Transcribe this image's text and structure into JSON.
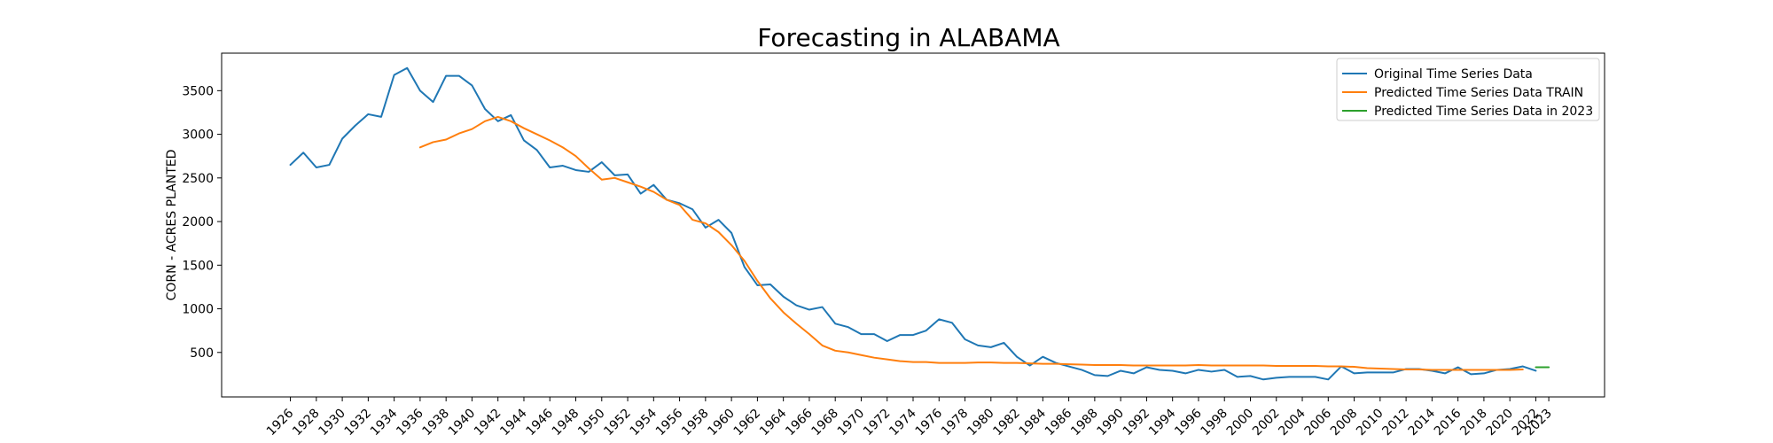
{
  "chart_data": {
    "type": "line",
    "title": "Forecasting in ALABAMA",
    "xlabel": "",
    "ylabel": "CORN - ACRES PLANTED",
    "xlim": [
      1920.7,
      2027.3
    ],
    "ylim": [
      -10,
      3930
    ],
    "x_ticks": [
      1926,
      1928,
      1930,
      1932,
      1934,
      1936,
      1938,
      1940,
      1942,
      1944,
      1946,
      1948,
      1950,
      1952,
      1954,
      1956,
      1958,
      1960,
      1962,
      1964,
      1966,
      1968,
      1970,
      1972,
      1974,
      1976,
      1978,
      1980,
      1982,
      1984,
      1986,
      1988,
      1990,
      1992,
      1994,
      1996,
      1998,
      2000,
      2002,
      2004,
      2006,
      2008,
      2010,
      2012,
      2014,
      2016,
      2018,
      2020,
      2022,
      2023
    ],
    "y_ticks": [
      500,
      1000,
      1500,
      2000,
      2500,
      3000,
      3500
    ],
    "legend_position": "top-right",
    "grid": false,
    "series": [
      {
        "name": "Original Time Series Data",
        "color": "#1f77b4",
        "x": [
          1926,
          1927,
          1928,
          1929,
          1930,
          1931,
          1932,
          1933,
          1934,
          1935,
          1936,
          1937,
          1938,
          1939,
          1940,
          1941,
          1942,
          1943,
          1944,
          1945,
          1946,
          1947,
          1948,
          1949,
          1950,
          1951,
          1952,
          1953,
          1954,
          1955,
          1956,
          1957,
          1958,
          1959,
          1960,
          1961,
          1962,
          1963,
          1964,
          1965,
          1966,
          1967,
          1968,
          1969,
          1970,
          1971,
          1972,
          1973,
          1974,
          1975,
          1976,
          1977,
          1978,
          1979,
          1980,
          1981,
          1982,
          1983,
          1984,
          1985,
          1986,
          1987,
          1988,
          1989,
          1990,
          1991,
          1992,
          1993,
          1994,
          1995,
          1996,
          1997,
          1998,
          1999,
          2000,
          2001,
          2002,
          2003,
          2004,
          2005,
          2006,
          2007,
          2008,
          2009,
          2010,
          2011,
          2012,
          2013,
          2014,
          2015,
          2016,
          2017,
          2018,
          2019,
          2020,
          2021,
          2022
        ],
        "y": [
          2650,
          2790,
          2620,
          2650,
          2950,
          3100,
          3230,
          3200,
          3680,
          3760,
          3500,
          3370,
          3670,
          3670,
          3560,
          3290,
          3150,
          3220,
          2930,
          2820,
          2620,
          2640,
          2590,
          2570,
          2680,
          2530,
          2540,
          2320,
          2420,
          2250,
          2210,
          2140,
          1930,
          2020,
          1870,
          1480,
          1270,
          1280,
          1140,
          1040,
          990,
          1020,
          830,
          790,
          710,
          710,
          630,
          700,
          700,
          750,
          880,
          840,
          650,
          580,
          560,
          610,
          450,
          350,
          450,
          380,
          340,
          300,
          240,
          230,
          290,
          260,
          330,
          300,
          290,
          260,
          300,
          280,
          300,
          220,
          230,
          190,
          210,
          220,
          220,
          220,
          190,
          340,
          260,
          270,
          270,
          270,
          310,
          310,
          290,
          260,
          330,
          250,
          260,
          300,
          310,
          340,
          290
        ]
      },
      {
        "name": "Predicted Time Series Data TRAIN",
        "color": "#ff7f0e",
        "x": [
          1936,
          1937,
          1938,
          1939,
          1940,
          1941,
          1942,
          1943,
          1944,
          1945,
          1946,
          1947,
          1948,
          1949,
          1950,
          1951,
          1952,
          1953,
          1954,
          1955,
          1956,
          1957,
          1958,
          1959,
          1960,
          1961,
          1962,
          1963,
          1964,
          1965,
          1966,
          1967,
          1968,
          1969,
          1970,
          1971,
          1972,
          1973,
          1974,
          1975,
          1976,
          1977,
          1978,
          1979,
          1980,
          1981,
          1982,
          1983,
          1984,
          1985,
          1986,
          1987,
          1988,
          1989,
          1990,
          1991,
          1992,
          1993,
          1994,
          1995,
          1996,
          1997,
          1998,
          1999,
          2000,
          2001,
          2002,
          2003,
          2004,
          2005,
          2006,
          2007,
          2008,
          2009,
          2010,
          2011,
          2012,
          2013,
          2014,
          2015,
          2016,
          2017,
          2018,
          2019,
          2020,
          2021
        ],
        "y": [
          2850,
          2910,
          2940,
          3010,
          3060,
          3150,
          3200,
          3150,
          3070,
          3000,
          2930,
          2850,
          2750,
          2610,
          2480,
          2500,
          2450,
          2400,
          2340,
          2250,
          2190,
          2020,
          1980,
          1880,
          1730,
          1550,
          1320,
          1120,
          960,
          830,
          710,
          580,
          520,
          500,
          470,
          440,
          420,
          400,
          390,
          390,
          380,
          380,
          380,
          385,
          385,
          380,
          380,
          375,
          370,
          370,
          365,
          360,
          355,
          355,
          355,
          350,
          350,
          350,
          350,
          350,
          355,
          350,
          350,
          350,
          350,
          350,
          345,
          345,
          345,
          345,
          340,
          340,
          335,
          320,
          315,
          310,
          305,
          305,
          300,
          300,
          300,
          300,
          300,
          300,
          300,
          305
        ]
      },
      {
        "name": "Predicted Time Series Data in 2023",
        "color": "#2ca02c",
        "x": [
          2022,
          2023
        ],
        "y": [
          330,
          330
        ]
      }
    ]
  }
}
